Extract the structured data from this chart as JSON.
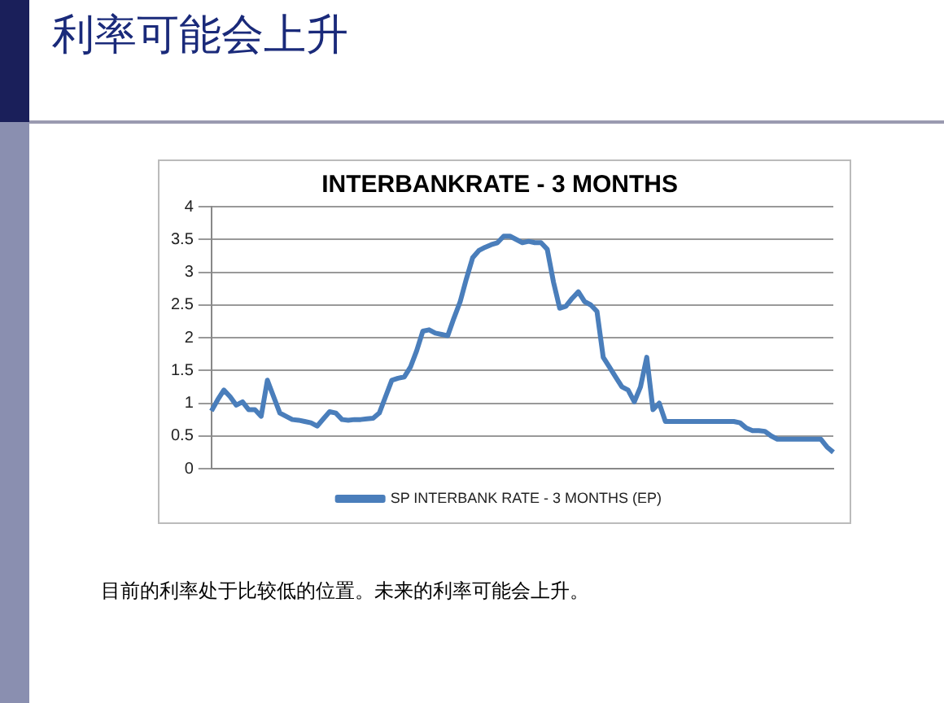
{
  "chart_data": {
    "type": "line",
    "title": "INTERBANKRATE - 3 MONTHS",
    "annotations": [
      "利率可能会上升",
      "目前的利率处于比较低的位置。未来的利率可能会上升。"
    ],
    "categories": [
      null,
      null,
      null,
      null,
      null,
      null,
      null,
      null,
      null,
      null,
      null,
      null,
      null,
      null,
      null,
      null,
      null,
      null,
      null,
      null,
      null,
      null,
      null,
      null,
      null,
      null,
      null,
      null,
      null,
      null,
      null,
      null,
      null,
      null,
      null,
      null,
      null,
      null,
      null,
      null,
      null,
      null,
      null,
      null,
      null,
      null,
      null,
      null,
      null,
      null,
      null,
      null,
      null,
      null,
      null,
      null,
      null,
      null,
      null,
      null,
      null,
      null,
      null,
      null,
      null,
      null,
      null,
      null,
      null,
      null,
      null,
      null,
      null,
      null,
      null,
      null,
      null,
      null,
      null,
      null,
      null,
      null,
      null,
      null,
      null,
      null,
      null,
      null,
      null,
      null,
      null,
      null,
      null,
      null,
      null,
      null,
      null,
      null,
      null,
      null,
      null
    ],
    "series": [
      {
        "name": "SP INTERBANK RATE - 3 MONTHS (EP)",
        "color": "#4a7ebb",
        "values": [
          0.88,
          1.05,
          1.2,
          1.1,
          0.97,
          1.02,
          0.9,
          0.9,
          0.8,
          1.35,
          1.1,
          0.85,
          0.8,
          0.75,
          0.74,
          0.72,
          0.7,
          0.65,
          0.76,
          0.87,
          0.85,
          0.75,
          0.74,
          0.75,
          0.75,
          0.76,
          0.77,
          0.85,
          1.1,
          1.35,
          1.38,
          1.4,
          1.55,
          1.8,
          2.1,
          2.12,
          2.07,
          2.05,
          2.03,
          2.3,
          2.55,
          2.9,
          3.22,
          3.33,
          3.38,
          3.42,
          3.45,
          3.55,
          3.55,
          3.5,
          3.45,
          3.47,
          3.45,
          3.45,
          3.35,
          2.85,
          2.45,
          2.48,
          2.6,
          2.7,
          2.55,
          2.5,
          2.4,
          1.7,
          1.55,
          1.4,
          1.25,
          1.2,
          1.02,
          1.25,
          1.7,
          0.9,
          1.0,
          0.72,
          0.72,
          0.72,
          0.72,
          0.72,
          0.72,
          0.72,
          0.72,
          0.72,
          0.72,
          0.72,
          0.72,
          0.7,
          0.62,
          0.58,
          0.58,
          0.57,
          0.5,
          0.45,
          0.45,
          0.45,
          0.45,
          0.45,
          0.45,
          0.45,
          0.45,
          0.33,
          0.25
        ]
      }
    ],
    "ylim": [
      0,
      4
    ],
    "yticks": [
      0,
      0.5,
      1,
      1.5,
      2,
      2.5,
      3,
      3.5,
      4
    ],
    "grid": "y",
    "legend": "bottom",
    "marker": "none",
    "line_style": "solid",
    "tick_labels": "y"
  }
}
